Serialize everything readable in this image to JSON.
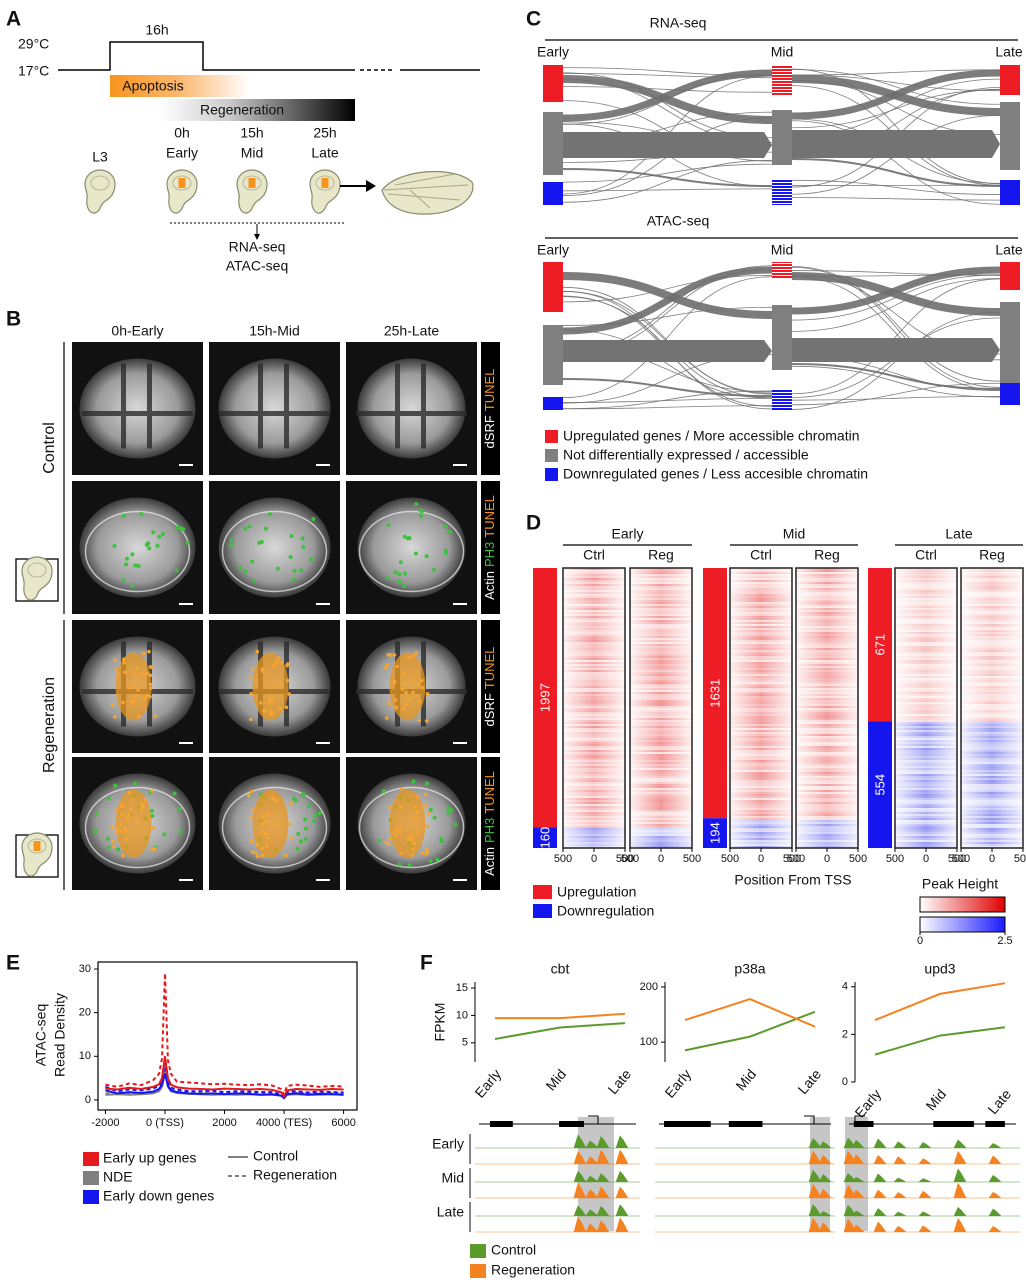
{
  "panel_a": {
    "letter": "A",
    "temp_high": "29°C",
    "temp_low": "17°C",
    "duration": "16h",
    "apoptosis": "Apoptosis",
    "regeneration": "Regeneration",
    "stages": [
      {
        "label": "L3"
      },
      {
        "time": "0h",
        "label": "Early"
      },
      {
        "time": "15h",
        "label": "Mid"
      },
      {
        "time": "25h",
        "label": "Late"
      }
    ],
    "assays": [
      "RNA-seq",
      "ATAC-seq"
    ]
  },
  "panel_b": {
    "letter": "B",
    "columns": [
      "0h-Early",
      "15h-Mid",
      "25h-Late"
    ],
    "groups": [
      "Control",
      "Regeneration"
    ],
    "stains": [
      [
        {
          "text": "dSRF",
          "color": "#ffffff"
        },
        {
          "text": "TUNEL",
          "color": "#f7941d"
        }
      ],
      [
        {
          "text": "Actin",
          "color": "#ffffff"
        },
        {
          "text": "PH3",
          "color": "#3dc23d"
        },
        {
          "text": "TUNEL",
          "color": "#f7941d"
        }
      ]
    ]
  },
  "panel_c": {
    "letter": "C",
    "sankeys": [
      {
        "title": "RNA-seq",
        "stages": [
          "Early",
          "Mid",
          "Late"
        ]
      },
      {
        "title": "ATAC-seq",
        "stages": [
          "Early",
          "Mid",
          "Late"
        ]
      }
    ],
    "legend": [
      {
        "text": "Upregulated genes / More accessible chromatin",
        "color": "#ee1c25"
      },
      {
        "text": "Not differentially expressed / accessible",
        "color": "#808080"
      },
      {
        "text": "Downregulated genes / Less accesible chromatin",
        "color": "#1515f0"
      }
    ]
  },
  "panel_d": {
    "letter": "D",
    "groups": [
      {
        "title": "Early",
        "conditions": [
          "Ctrl",
          "Reg"
        ],
        "up": 1997,
        "down": 160
      },
      {
        "title": "Mid",
        "conditions": [
          "Ctrl",
          "Reg"
        ],
        "up": 1631,
        "down": 194
      },
      {
        "title": "Late",
        "conditions": [
          "Ctrl",
          "Reg"
        ],
        "up": 671,
        "down": 554
      }
    ],
    "xlim": [
      -500,
      500
    ],
    "xticks": [
      {
        "value": -500,
        "label": "500"
      },
      0,
      500
    ],
    "xlabel": "Position From TSS",
    "legend": [
      {
        "text": "Upregulation",
        "color": "#ee1c25"
      },
      {
        "text": "Downregulation",
        "color": "#1515f0"
      }
    ],
    "colorbar": {
      "title": "Peak Height",
      "lim": [
        0,
        2.5
      ],
      "ticks": [
        0,
        2.5
      ]
    }
  },
  "panel_e": {
    "letter": "E"
  },
  "panel_f": {
    "letter": "F",
    "track_rows": [
      "Early",
      "Mid",
      "Late"
    ]
  },
  "chart_data": [
    {
      "type": "line",
      "ylabel": [
        "ATAC-seq",
        "Read Density"
      ],
      "x": [
        -2000,
        -1600,
        -1200,
        -800,
        -400,
        -200,
        -100,
        0,
        100,
        200,
        400,
        800,
        1200,
        1600,
        2000,
        2400,
        2800,
        3200,
        3600,
        3900,
        4000,
        4100,
        4400,
        4800,
        5200,
        5600,
        6000
      ],
      "xlim": [
        -2250,
        6450
      ],
      "ylim": [
        -2.3,
        31.6
      ],
      "xticks": [
        -2000,
        {
          "value": 0,
          "label": "0 (TSS)"
        },
        2000,
        {
          "value": 4000,
          "label": "4000 (TES)"
        },
        6000
      ],
      "yticks": [
        0,
        10,
        20,
        30
      ],
      "series": [
        {
          "name": "Early up genes",
          "condition": "Control",
          "color": "#e41a1c",
          "dashed": false,
          "values": [
            2.6,
            2.4,
            2.8,
            2.5,
            3.0,
            3.6,
            5.0,
            10.0,
            5.0,
            3.5,
            2.9,
            2.6,
            2.5,
            2.4,
            2.6,
            2.5,
            2.4,
            2.5,
            2.3,
            1.8,
            0.8,
            2.2,
            2.5,
            2.4,
            2.3,
            2.5,
            2.4
          ]
        },
        {
          "name": "Early up genes",
          "condition": "Regeneration",
          "color": "#e41a1c",
          "dashed": true,
          "values": [
            3.5,
            3.0,
            3.8,
            3.4,
            4.5,
            6.0,
            9.5,
            29.0,
            9.0,
            6.0,
            4.2,
            4.0,
            3.8,
            3.6,
            3.7,
            3.5,
            3.4,
            3.6,
            3.3,
            2.5,
            1.2,
            3.2,
            3.5,
            3.3,
            3.0,
            3.2,
            3.1
          ]
        },
        {
          "name": "NDE",
          "condition": "Control",
          "color": "#808080",
          "dashed": false,
          "values": [
            1.2,
            1.3,
            1.2,
            1.3,
            1.5,
            2.0,
            3.0,
            6.5,
            3.0,
            2.0,
            1.6,
            1.4,
            1.3,
            1.2,
            1.3,
            1.2,
            1.3,
            1.2,
            1.2,
            1.0,
            0.5,
            1.2,
            1.3,
            1.2,
            1.2,
            1.3,
            1.2
          ]
        },
        {
          "name": "NDE",
          "condition": "Regeneration",
          "color": "#808080",
          "dashed": true,
          "values": [
            1.5,
            1.5,
            1.6,
            1.5,
            1.8,
            2.4,
            3.6,
            8.0,
            3.6,
            2.4,
            1.9,
            1.7,
            1.6,
            1.5,
            1.6,
            1.5,
            1.6,
            1.5,
            1.5,
            1.2,
            0.6,
            1.5,
            1.6,
            1.5,
            1.5,
            1.6,
            1.5
          ]
        },
        {
          "name": "Early down genes",
          "condition": "Control",
          "color": "#1515f0",
          "dashed": false,
          "values": [
            2.2,
            1.5,
            1.8,
            1.6,
            1.9,
            2.5,
            3.5,
            6.0,
            3.2,
            2.2,
            1.8,
            1.5,
            1.4,
            1.5,
            1.3,
            1.5,
            1.4,
            1.2,
            1.3,
            1.0,
            0.4,
            1.3,
            1.5,
            1.2,
            1.4,
            1.3,
            1.2
          ]
        },
        {
          "name": "Early down genes",
          "condition": "Regeneration",
          "color": "#1515f0",
          "dashed": true,
          "values": [
            3.0,
            2.0,
            2.4,
            2.2,
            2.6,
            3.2,
            4.5,
            8.5,
            4.2,
            2.8,
            2.4,
            2.0,
            2.0,
            2.1,
            1.8,
            2.0,
            1.9,
            1.8,
            1.8,
            1.3,
            0.6,
            1.8,
            2.0,
            1.7,
            1.9,
            1.8,
            1.7
          ]
        }
      ]
    },
    {
      "type": "line",
      "title": "cbt",
      "ylabel": "FPKM",
      "categories": [
        "Early",
        "Mid",
        "Late"
      ],
      "ylim": [
        1.5,
        16.1
      ],
      "yticks": [
        5,
        10,
        15
      ],
      "series": [
        {
          "name": "Control",
          "color": "#5b9b2e",
          "values": [
            5.7,
            7.8,
            8.6
          ]
        },
        {
          "name": "Regeneration",
          "color": "#f58220",
          "values": [
            9.5,
            9.5,
            10.3
          ]
        }
      ]
    },
    {
      "type": "line",
      "title": "p38a",
      "categories": [
        "Early",
        "Mid",
        "Late"
      ],
      "ylim": [
        64,
        209
      ],
      "yticks": [
        100,
        200
      ],
      "series": [
        {
          "name": "Control",
          "color": "#5b9b2e",
          "values": [
            85,
            110,
            155
          ]
        },
        {
          "name": "Regeneration",
          "color": "#f58220",
          "values": [
            140,
            178,
            128
          ]
        }
      ]
    },
    {
      "type": "line",
      "title": "upd3",
      "categories": [
        "Early",
        "Mid",
        "Late"
      ],
      "ylim": [
        0,
        4.2
      ],
      "yticks": [
        0,
        2,
        4
      ],
      "series": [
        {
          "name": "Control",
          "color": "#5b9b2e",
          "values": [
            1.15,
            1.95,
            2.3
          ]
        },
        {
          "name": "Regeneration",
          "color": "#f58220",
          "values": [
            2.6,
            3.7,
            4.15
          ]
        }
      ]
    }
  ]
}
